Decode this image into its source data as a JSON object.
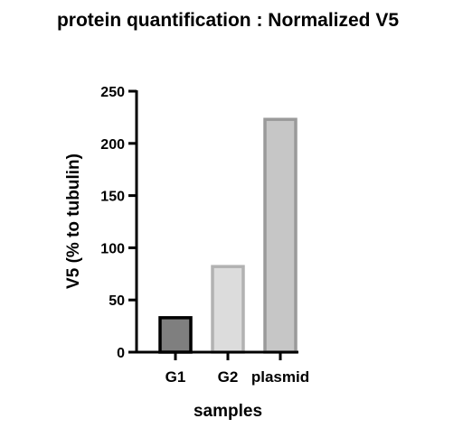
{
  "chart_data": {
    "type": "bar",
    "title": "protein quantification : Normalized V5",
    "xlabel": "samples",
    "ylabel": "V5 (% to tubulin)",
    "categories": [
      "G1",
      "G2",
      "plasmid"
    ],
    "values": [
      33,
      82,
      223
    ],
    "ylim": [
      0,
      250
    ],
    "yticks": [
      0,
      50,
      100,
      150,
      200,
      250
    ],
    "grid": false,
    "legend": "none",
    "bar_fills": [
      "#7f7f7f",
      "#dcdcdc",
      "#c6c6c6"
    ],
    "bar_strokes": [
      "#000000",
      "#b2b2b2",
      "#9a9a9a"
    ]
  }
}
